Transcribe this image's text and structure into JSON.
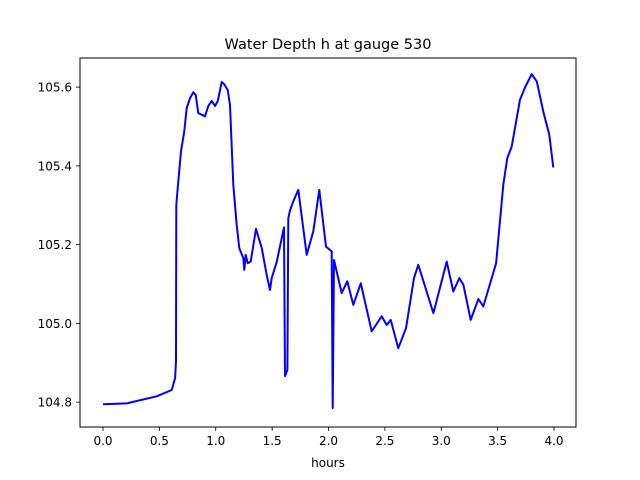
{
  "chart_data": {
    "type": "line",
    "title": "Water Depth h at gauge 530",
    "xlabel": "hours",
    "ylabel": "",
    "xlim": [
      -0.204,
      4.195
    ],
    "ylim": [
      104.737,
      105.674
    ],
    "xticks": [
      "0.0",
      "0.5",
      "1.0",
      "1.5",
      "2.0",
      "2.5",
      "3.0",
      "3.5",
      "4.0"
    ],
    "yticks": [
      "104.8",
      "105.0",
      "105.2",
      "105.4",
      "105.6"
    ],
    "grid": false,
    "series": [
      {
        "name": "h",
        "color": "#0000ff",
        "x": [
          0.0,
          0.21,
          0.476,
          0.609,
          0.639,
          0.647,
          0.65,
          0.668,
          0.692,
          0.721,
          0.742,
          0.772,
          0.801,
          0.822,
          0.845,
          0.905,
          0.934,
          0.964,
          0.993,
          1.017,
          1.053,
          1.073,
          1.106,
          1.126,
          1.156,
          1.186,
          1.209,
          1.244,
          1.253,
          1.266,
          1.283,
          1.31,
          1.357,
          1.408,
          1.452,
          1.481,
          1.496,
          1.541,
          1.605,
          1.614,
          1.635,
          1.643,
          1.659,
          1.688,
          1.732,
          1.807,
          1.865,
          1.918,
          1.978,
          2.028,
          2.037,
          2.049,
          2.117,
          2.167,
          2.22,
          2.286,
          2.383,
          2.472,
          2.516,
          2.552,
          2.619,
          2.687,
          2.758,
          2.796,
          2.93,
          3.048,
          3.107,
          3.16,
          3.196,
          3.261,
          3.329,
          3.373,
          3.447,
          3.486,
          3.55,
          3.586,
          3.625,
          3.698,
          3.743,
          3.802,
          3.847,
          3.905,
          3.958,
          3.994
        ],
        "y": [
          104.795,
          104.797,
          104.815,
          104.831,
          104.861,
          104.904,
          105.301,
          105.361,
          105.437,
          105.488,
          105.547,
          105.572,
          105.587,
          105.58,
          105.534,
          105.526,
          105.552,
          105.565,
          105.552,
          105.564,
          105.613,
          105.608,
          105.593,
          105.555,
          105.352,
          105.25,
          105.191,
          105.166,
          105.136,
          105.174,
          105.153,
          105.157,
          105.24,
          105.191,
          105.123,
          105.085,
          105.115,
          105.157,
          105.244,
          104.866,
          104.882,
          105.267,
          105.288,
          105.31,
          105.339,
          105.174,
          105.234,
          105.339,
          105.195,
          105.183,
          104.785,
          105.161,
          105.077,
          105.107,
          105.047,
          105.102,
          104.98,
          105.018,
          104.996,
          105.009,
          104.937,
          104.988,
          105.115,
          105.149,
          105.026,
          105.157,
          105.081,
          105.115,
          105.098,
          105.009,
          105.062,
          105.043,
          105.115,
          105.153,
          105.352,
          105.42,
          105.449,
          105.568,
          105.599,
          105.633,
          105.614,
          105.538,
          105.479,
          105.396
        ]
      }
    ]
  }
}
